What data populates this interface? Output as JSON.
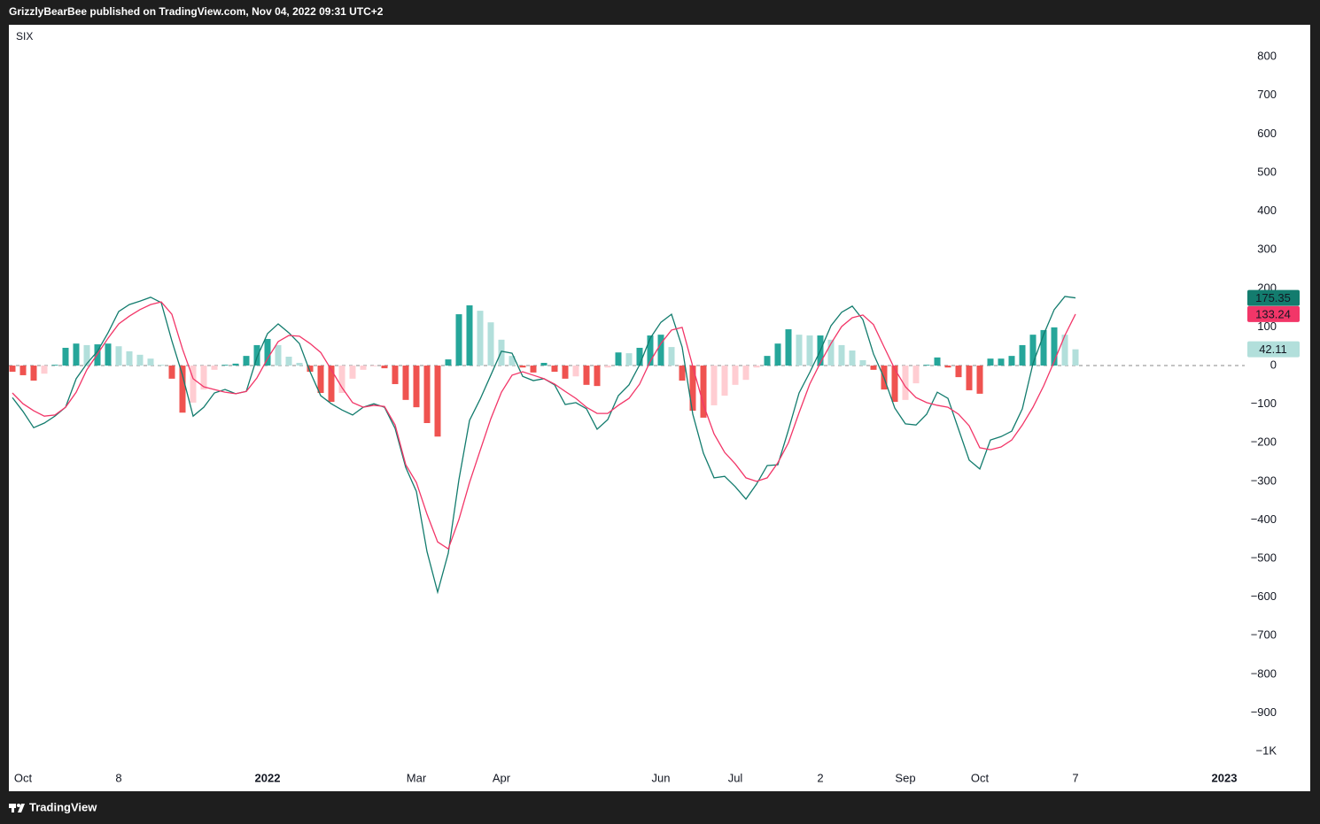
{
  "header": "GrizzlyBearBee published on TradingView.com, Nov 04, 2022 09:31 UTC+2",
  "footer": "TradingView",
  "chart_data": {
    "type": "combo",
    "symbol": "SIX",
    "categories": [
      null,
      "Oct",
      null,
      null,
      null,
      null,
      null,
      null,
      null,
      null,
      "8",
      null,
      null,
      null,
      null,
      null,
      null,
      null,
      null,
      null,
      null,
      null,
      null,
      null,
      "2022",
      null,
      null,
      null,
      null,
      null,
      null,
      null,
      null,
      null,
      null,
      null,
      null,
      null,
      "Mar",
      null,
      null,
      null,
      null,
      null,
      null,
      null,
      "Apr",
      null,
      null,
      null,
      null,
      null,
      null,
      null,
      null,
      null,
      null,
      null,
      null,
      null,
      null,
      "Jun",
      null,
      null,
      null,
      null,
      null,
      null,
      "Jul",
      null,
      null,
      null,
      null,
      null,
      null,
      null,
      "2",
      null,
      null,
      null,
      null,
      null,
      null,
      null,
      "Sep",
      null,
      null,
      null,
      null,
      null,
      null,
      "Oct",
      null,
      null,
      null,
      null,
      null,
      null,
      null,
      null,
      "7",
      null,
      null,
      null,
      null,
      null,
      null,
      null,
      null,
      null,
      null,
      null,
      null,
      null,
      "2023",
      null
    ],
    "ylim": [
      -1103,
      883
    ],
    "yticks": [
      800,
      700,
      600,
      500,
      400,
      300,
      200,
      100,
      0,
      {
        "value": -100,
        "label": "−100"
      },
      {
        "value": -200,
        "label": "−200"
      },
      {
        "value": -300,
        "label": "−300"
      },
      {
        "value": -400,
        "label": "−400"
      },
      {
        "value": -500,
        "label": "−500"
      },
      {
        "value": -600,
        "label": "−600"
      },
      {
        "value": -700,
        "label": "−700"
      },
      {
        "value": -800,
        "label": "−800"
      },
      {
        "value": -900,
        "label": "−900"
      },
      {
        "value": -1000,
        "label": "−1K"
      }
    ],
    "series": [
      {
        "type": "bar",
        "color": "#26a69a",
        "color_falling": "#b2dfdb",
        "negative_color": "#ef5350",
        "negative_color_rising": "#ffcdd2",
        "price_label": "42.11",
        "values": [
          -16,
          -25,
          -39,
          -21,
          2,
          46,
          57,
          53,
          55,
          57,
          50,
          37,
          28,
          18,
          2,
          -34,
          -122,
          -96,
          -62,
          -11,
          2,
          5,
          25,
          53,
          69,
          53,
          23,
          7,
          -16,
          -71,
          -94,
          -71,
          -34,
          -11,
          -2,
          -7,
          -48,
          -89,
          -108,
          -149,
          -184,
          16,
          133,
          156,
          142,
          112,
          67,
          25,
          -5,
          -18,
          7,
          -16,
          -34,
          -28,
          -50,
          -53,
          -5,
          34,
          32,
          46,
          78,
          80,
          48,
          -39,
          -117,
          -135,
          -103,
          -78,
          -50,
          -37,
          -5,
          25,
          57,
          94,
          80,
          78,
          78,
          67,
          53,
          39,
          14,
          -11,
          -62,
          -94,
          -89,
          -46,
          2,
          21,
          -5,
          -30,
          -64,
          -73,
          18,
          18,
          25,
          53,
          80,
          92,
          99,
          80,
          42.11,
          null,
          null,
          null,
          null,
          null,
          null,
          null,
          null,
          null,
          null,
          null,
          null,
          null,
          null,
          null
        ]
      },
      {
        "type": "line",
        "color": "#137c6e",
        "price_label": "175.35",
        "values": [
          -83,
          -119,
          -161,
          -149,
          -131,
          -108,
          -34,
          5,
          37,
          85,
          140,
          158,
          167,
          177,
          163,
          64,
          -25,
          -131,
          -108,
          -71,
          -62,
          -73,
          -67,
          21,
          83,
          108,
          85,
          57,
          -16,
          -78,
          -99,
          -115,
          -128,
          -108,
          -99,
          -108,
          -163,
          -264,
          -326,
          -482,
          -587,
          -486,
          -296,
          -142,
          -87,
          -25,
          37,
          32,
          -28,
          -39,
          -34,
          -50,
          -101,
          -96,
          -112,
          -165,
          -140,
          -78,
          -50,
          2,
          71,
          112,
          133,
          48,
          -126,
          -227,
          -291,
          -287,
          -314,
          -346,
          -307,
          -259,
          -257,
          -167,
          -71,
          -18,
          39,
          103,
          138,
          154,
          119,
          30,
          -32,
          -110,
          -151,
          -154,
          -126,
          -69,
          -85,
          -165,
          -245,
          -268,
          -193,
          -184,
          -170,
          -112,
          5,
          80,
          145,
          179,
          175.35,
          null,
          null,
          null,
          null,
          null,
          null,
          null,
          null,
          null,
          null,
          null,
          null,
          null,
          null,
          null
        ]
      },
      {
        "type": "line",
        "color": "#f23668",
        "price_label": "133.24",
        "values": [
          -71,
          -99,
          -117,
          -131,
          -128,
          -108,
          -69,
          -11,
          30,
          71,
          108,
          128,
          145,
          158,
          165,
          133,
          43,
          -34,
          -55,
          -62,
          -69,
          -73,
          -67,
          -32,
          18,
          62,
          78,
          76,
          57,
          34,
          -11,
          -57,
          -96,
          -108,
          -103,
          -106,
          -154,
          -257,
          -303,
          -385,
          -457,
          -475,
          -399,
          -303,
          -220,
          -138,
          -69,
          -25,
          -16,
          -25,
          -34,
          -48,
          -67,
          -85,
          -108,
          -124,
          -124,
          -103,
          -85,
          -48,
          11,
          57,
          92,
          99,
          -2,
          -101,
          -177,
          -225,
          -255,
          -291,
          -300,
          -291,
          -252,
          -200,
          -122,
          -48,
          7,
          57,
          101,
          124,
          131,
          106,
          48,
          -9,
          -55,
          -83,
          -96,
          -103,
          -108,
          -126,
          -156,
          -213,
          -218,
          -211,
          -193,
          -154,
          -108,
          -53,
          11,
          78,
          133.24,
          null,
          null,
          null,
          null,
          null,
          null,
          null,
          null,
          null,
          null,
          null,
          null,
          null,
          null,
          null
        ]
      }
    ]
  }
}
